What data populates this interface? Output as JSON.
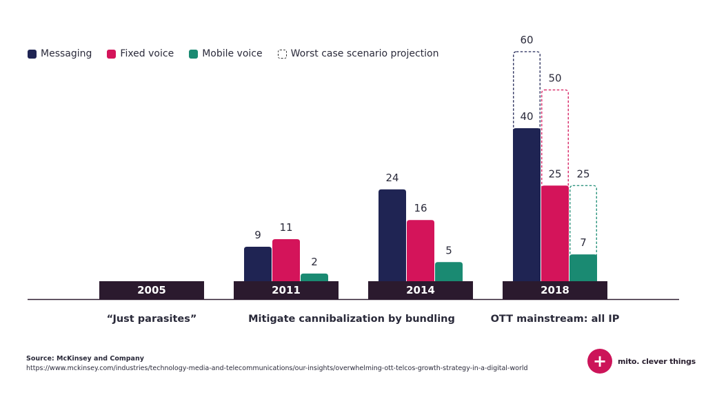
{
  "legend": {
    "messaging": "Messaging",
    "fixed_voice": "Fixed voice",
    "mobile_voice": "Mobile voice",
    "worst_case": "Worst case scenario projection"
  },
  "source": {
    "title": "Source: McKinsey and Company",
    "url": "https://www.mckinsey.com/industries/technology-media-and-telecommunications/our-insights/overwhelming-ott-telcos-growth-strategy-in-a-digital-world"
  },
  "brand": {
    "icon": "plus-icon",
    "text": "mito. clever things"
  },
  "colors": {
    "messaging": "#1f2453",
    "fixed_voice": "#d4145a",
    "mobile_voice": "#1a8a72",
    "year_box": "#2b1a2e",
    "baseline": "#2b1a2e"
  },
  "chart_data": {
    "type": "bar",
    "categories": [
      "2005",
      "2011",
      "2014",
      "2018"
    ],
    "phase_labels": [
      "“Just parasites”",
      "Mitigate cannibalization by bundling",
      "",
      "OTT mainstream: all IP"
    ],
    "series": [
      {
        "name": "Messaging",
        "values": [
          null,
          9,
          24,
          40
        ]
      },
      {
        "name": "Fixed voice",
        "values": [
          null,
          11,
          16,
          25
        ]
      },
      {
        "name": "Mobile voice",
        "values": [
          null,
          2,
          5,
          7
        ]
      }
    ],
    "worst_case_projection": {
      "name": "Worst case scenario projection",
      "category": "2018",
      "values": [
        60,
        50,
        25
      ]
    },
    "ylim": [
      0,
      60
    ],
    "legend_position": "top-left",
    "grid": false
  }
}
